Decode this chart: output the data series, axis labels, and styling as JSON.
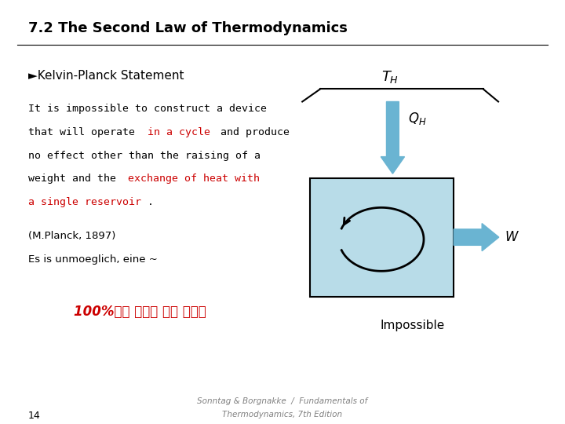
{
  "title": "7.2 The Second Law of Thermodynamics",
  "title_fontsize": 13,
  "bullet_text": "►Kelvin-Planck Statement",
  "planck_line1": "(M.Planck, 1897)",
  "planck_line2": "Es is unmoeglich, eine ~",
  "korean_text": "100%일로 만드는 것은 불가능",
  "impossible_text": "Impossible",
  "footer_line1": "Sonntag & Borgnakke  /  Fundamentals of",
  "footer_line2": "Thermodynamics, 7th Edition",
  "page_num": "14",
  "bg_color": "#ffffff",
  "text_color": "#000000",
  "red_color": "#cc0000",
  "blue_color": "#6ab4d2",
  "box_color": "#b8dce8"
}
